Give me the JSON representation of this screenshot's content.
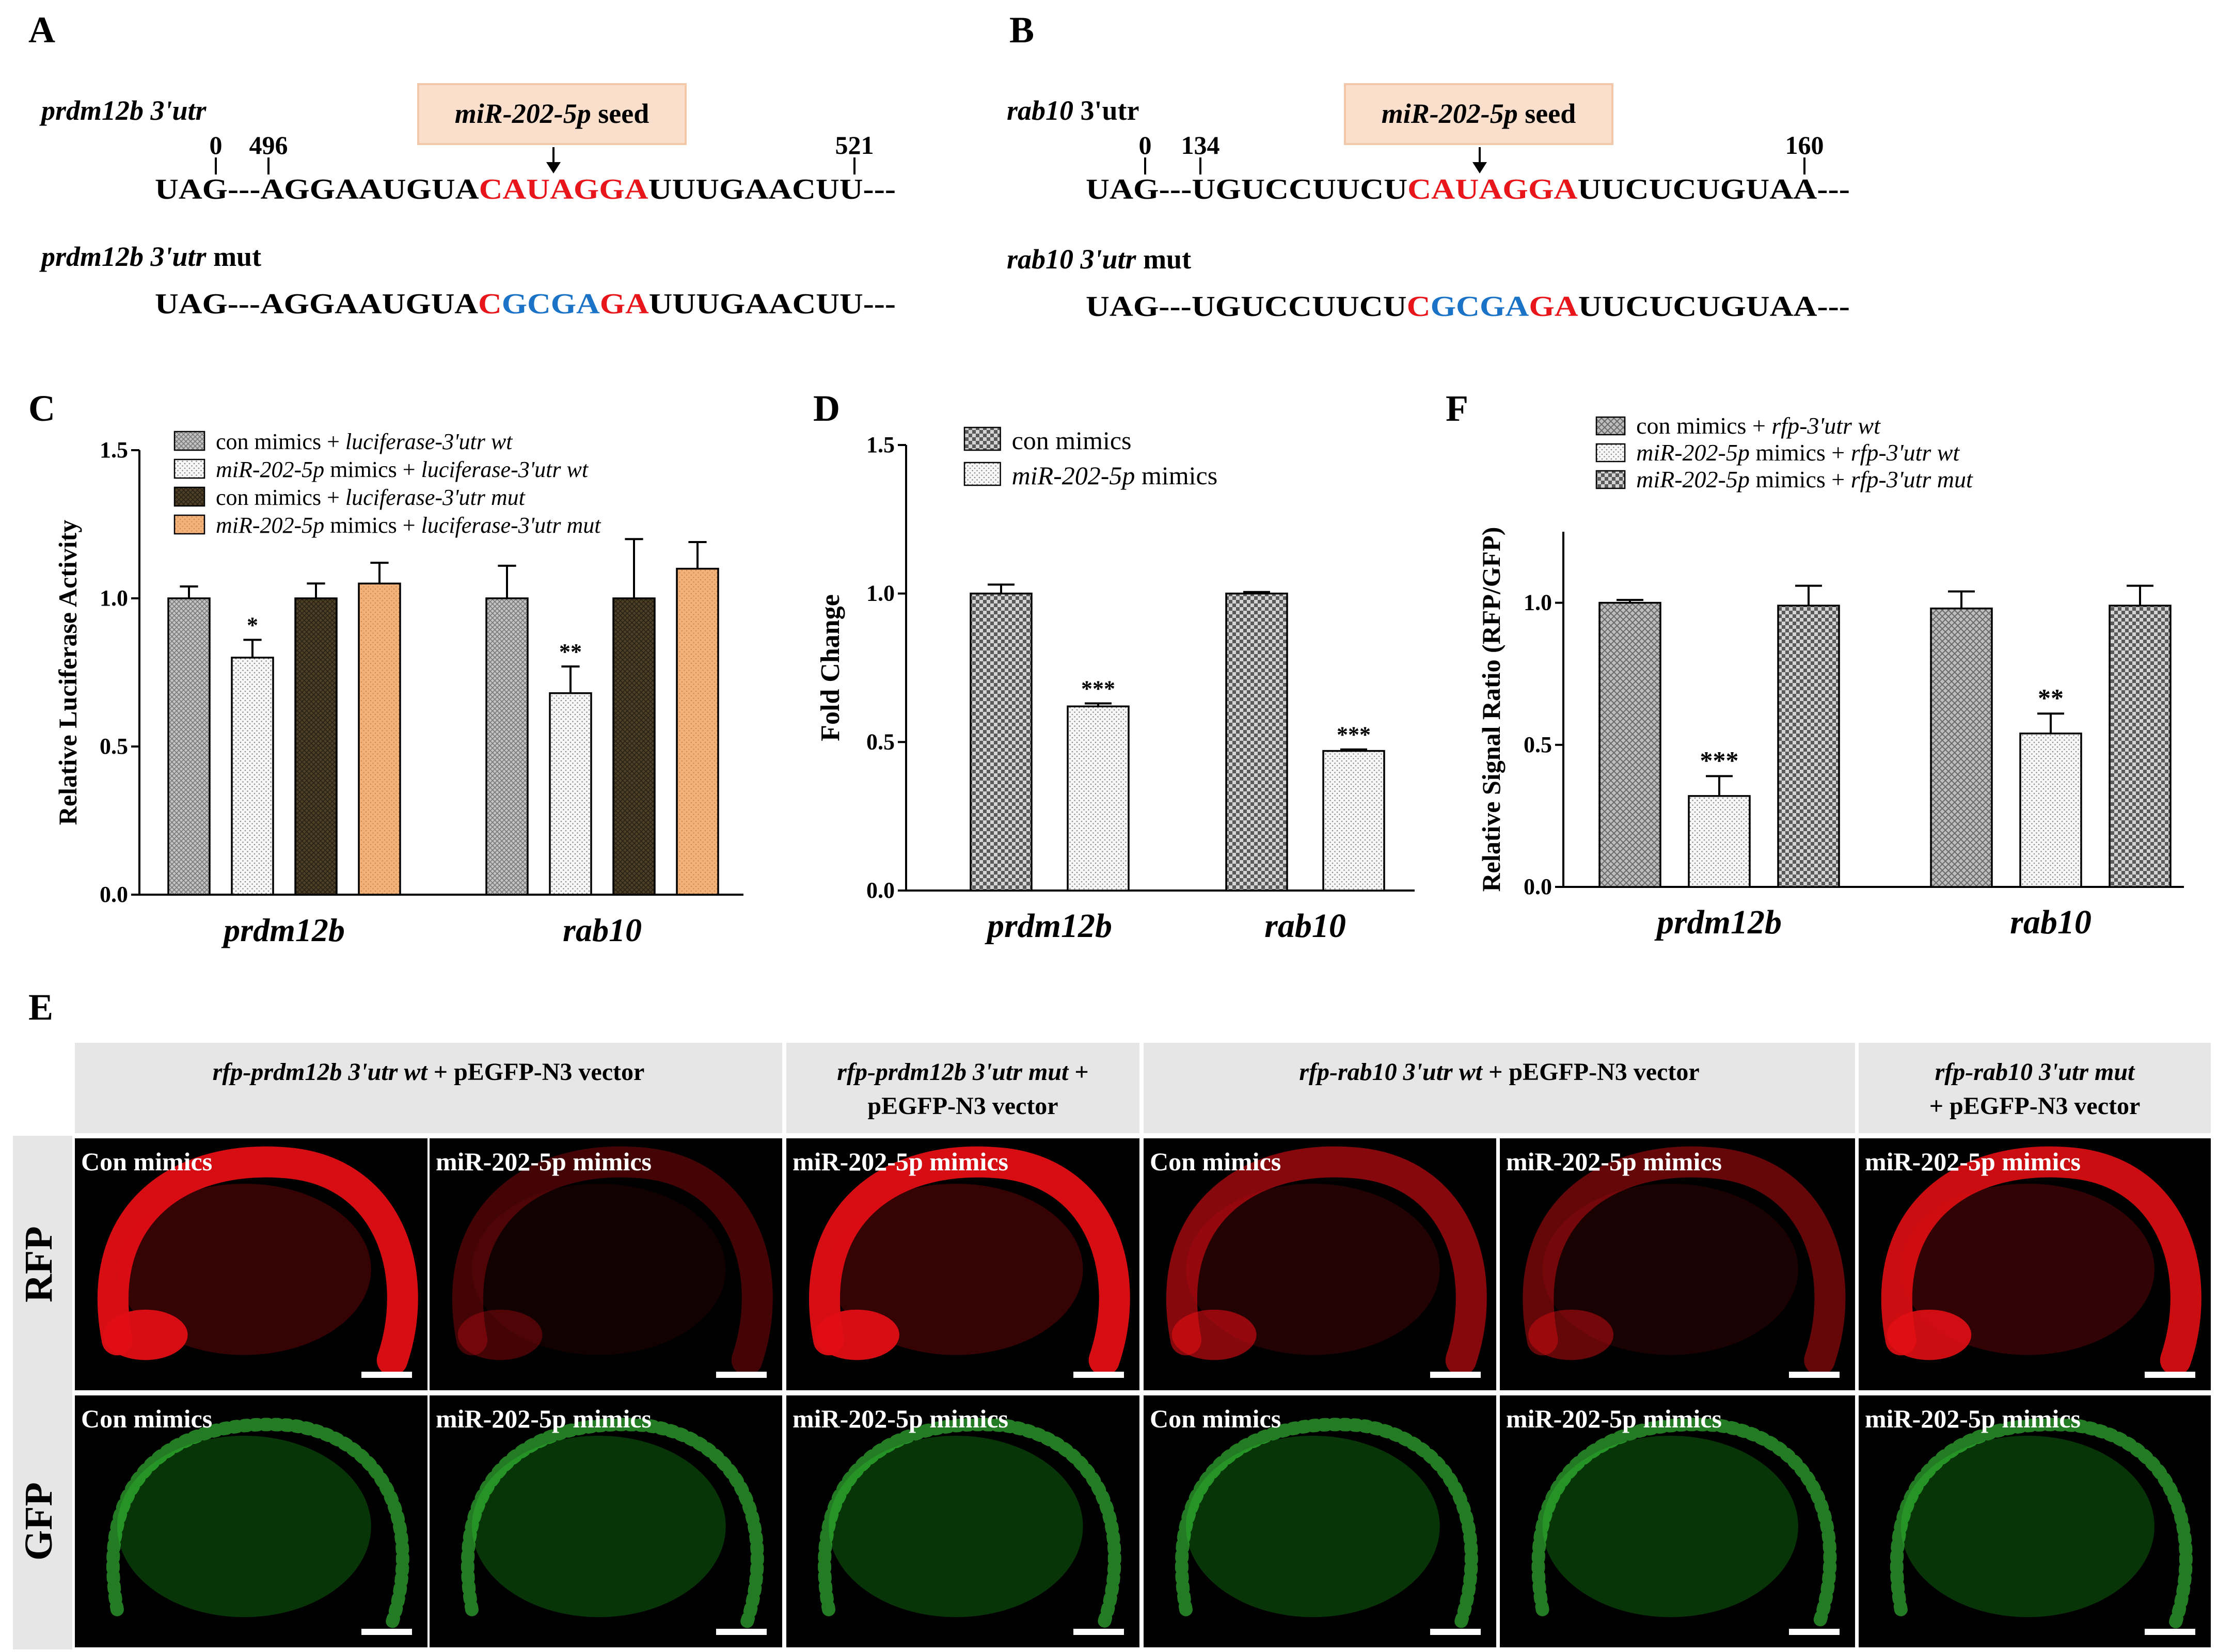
{
  "colors": {
    "seed_red": "#e8151b",
    "mut_blue": "#1b73c8",
    "seed_box_fill": "#f9dfcc",
    "seed_box_stroke": "#f3c8a8",
    "rfp_red": "#e10e14",
    "gfp_green": "#1bb01b",
    "panel_header_bg": "#e6e6e6",
    "bar_olive": "#4d4026",
    "bar_orange": "#f2b179",
    "bar_gray": "#b9b9b9",
    "bar_light": "#f4f4f4"
  },
  "panel_labels": {
    "A": "A",
    "B": "B",
    "C": "C",
    "D": "D",
    "E": "E",
    "F": "F"
  },
  "seq_a": {
    "title_italic": "prdm12b 3'utr",
    "title_plain": "",
    "seed_italic": "miR-202-5p",
    "seed_plain": " seed",
    "pos": [
      "0",
      "496",
      "521"
    ],
    "wt": {
      "pre": "UAG---AGGAAUGUA",
      "seed": "CAUAGGA",
      "post": "UUUGAACUU---"
    },
    "mut_title_italic": "prdm12b 3'utr",
    "mut_title_plain": " mut",
    "mut": {
      "pre": "UAG---AGGAAUGUA",
      "c1": "C",
      "c2": "GCGA",
      "c3": "GA",
      "post": "UUUGAACUU---"
    }
  },
  "seq_b": {
    "title_italic": "rab10",
    "title_plain": " 3'utr",
    "seed_italic": "miR-202-5p",
    "seed_plain": " seed",
    "pos": [
      "0",
      "134",
      "160"
    ],
    "wt": {
      "pre": "UAG---UGUCCUUCU",
      "seed": "CAUAGGA",
      "post": "UUCUCUGUAA---"
    },
    "mut_title_italic": "rab10 3'utr",
    "mut_title_plain": " mut",
    "mut": {
      "pre": "UAG---UGUCCUUCU",
      "c1": "C",
      "c2": "GCGA",
      "c3": "GA",
      "post": "UUCUCUGUAA---"
    }
  },
  "chart_data": [
    {
      "panel": "C",
      "type": "bar",
      "categories": [
        "prdm12b",
        "rab10"
      ],
      "ylabel": "Relative Luciferase Activity",
      "ylim": [
        0,
        1.5
      ],
      "yticks": [
        "0.0",
        "0.5",
        "1.0",
        "1.5"
      ],
      "legend": [
        {
          "italic_a": "",
          "plain": "con mimics + ",
          "italic_b": "luciferase-3'utr wt"
        },
        {
          "italic_a": "miR-202-5p",
          "plain": "  mimics + ",
          "italic_b": "luciferase-3'utr wt"
        },
        {
          "italic_a": "",
          "plain": "con mimics + ",
          "italic_b": "luciferase-3'utr mut"
        },
        {
          "italic_a": "miR-202-5p",
          "plain": " mimics + ",
          "italic_b": "luciferase-3'utr mut"
        }
      ],
      "series": [
        {
          "values": [
            1.0,
            1.0
          ],
          "errors": [
            0.04,
            0.11
          ],
          "sig": [
            "",
            ""
          ]
        },
        {
          "values": [
            0.8,
            0.68
          ],
          "errors": [
            0.06,
            0.09
          ],
          "sig": [
            "*",
            "**"
          ]
        },
        {
          "values": [
            1.0,
            1.0
          ],
          "errors": [
            0.05,
            0.2
          ],
          "sig": [
            "",
            ""
          ]
        },
        {
          "values": [
            1.05,
            1.1
          ],
          "errors": [
            0.07,
            0.09
          ],
          "sig": [
            "",
            ""
          ]
        }
      ]
    },
    {
      "panel": "D",
      "type": "bar",
      "categories": [
        "prdm12b",
        "rab10"
      ],
      "ylabel": "Fold Change",
      "ylim": [
        0,
        1.5
      ],
      "yticks": [
        "0.0",
        "0.5",
        "1.0",
        "1.5"
      ],
      "legend": [
        {
          "italic_a": "",
          "plain": "con mimics",
          "italic_b": ""
        },
        {
          "italic_a": "miR-202-5p",
          "plain": " mimics",
          "italic_b": ""
        }
      ],
      "series": [
        {
          "values": [
            1.0,
            1.0
          ],
          "errors": [
            0.03,
            0.005
          ],
          "sig": [
            "",
            ""
          ]
        },
        {
          "values": [
            0.62,
            0.47
          ],
          "errors": [
            0.01,
            0.005
          ],
          "sig": [
            "***",
            "***"
          ]
        }
      ]
    },
    {
      "panel": "F",
      "type": "bar",
      "categories": [
        "prdm12b",
        "rab10"
      ],
      "ylabel": "Relative Signal Ratio (RFP/GFP)",
      "ylim": [
        0,
        1.25
      ],
      "yticks": [
        "0.0",
        "0.5",
        "1.0"
      ],
      "legend": [
        {
          "italic_a": "",
          "plain": "con mimics + ",
          "italic_b": "rfp-3'utr wt"
        },
        {
          "italic_a": "miR-202-5p",
          "plain": " mimics + ",
          "italic_b": "rfp-3'utr wt"
        },
        {
          "italic_a": "miR-202-5p",
          "plain": " mimics + ",
          "italic_b": "rfp-3'utr mut"
        }
      ],
      "series": [
        {
          "values": [
            1.0,
            0.98
          ],
          "errors": [
            0.01,
            0.06
          ],
          "sig": [
            "",
            ""
          ]
        },
        {
          "values": [
            0.32,
            0.54
          ],
          "errors": [
            0.07,
            0.07
          ],
          "sig": [
            "***",
            "**"
          ]
        },
        {
          "values": [
            0.99,
            0.99
          ],
          "errors": [
            0.07,
            0.07
          ],
          "sig": [
            "",
            ""
          ]
        }
      ]
    }
  ],
  "panel_e": {
    "headers": [
      {
        "italic": "rfp-prdm12b 3'utr wt",
        "plain": " + pEGFP-N3 vector",
        "line2": ""
      },
      {
        "italic": "rfp-prdm12b 3'utr mut",
        "plain": " +",
        "line2": "pEGFP-N3 vector"
      },
      {
        "italic": "rfp-rab10 3'utr wt",
        "plain": " + pEGFP-N3 vector",
        "line2": ""
      },
      {
        "italic": "rfp-rab10 3'utr mut",
        "plain": "",
        "line2": "+ pEGFP-N3 vector"
      }
    ],
    "rows": [
      "RFP",
      "GFP"
    ],
    "image_labels": [
      "Con mimics",
      "miR-202-5p mimics",
      "miR-202-5p mimics",
      "Con mimics",
      "miR-202-5p mimics",
      "miR-202-5p mimics"
    ],
    "rfp_intensity": [
      0.95,
      0.3,
      0.95,
      0.6,
      0.45,
      0.9
    ]
  }
}
